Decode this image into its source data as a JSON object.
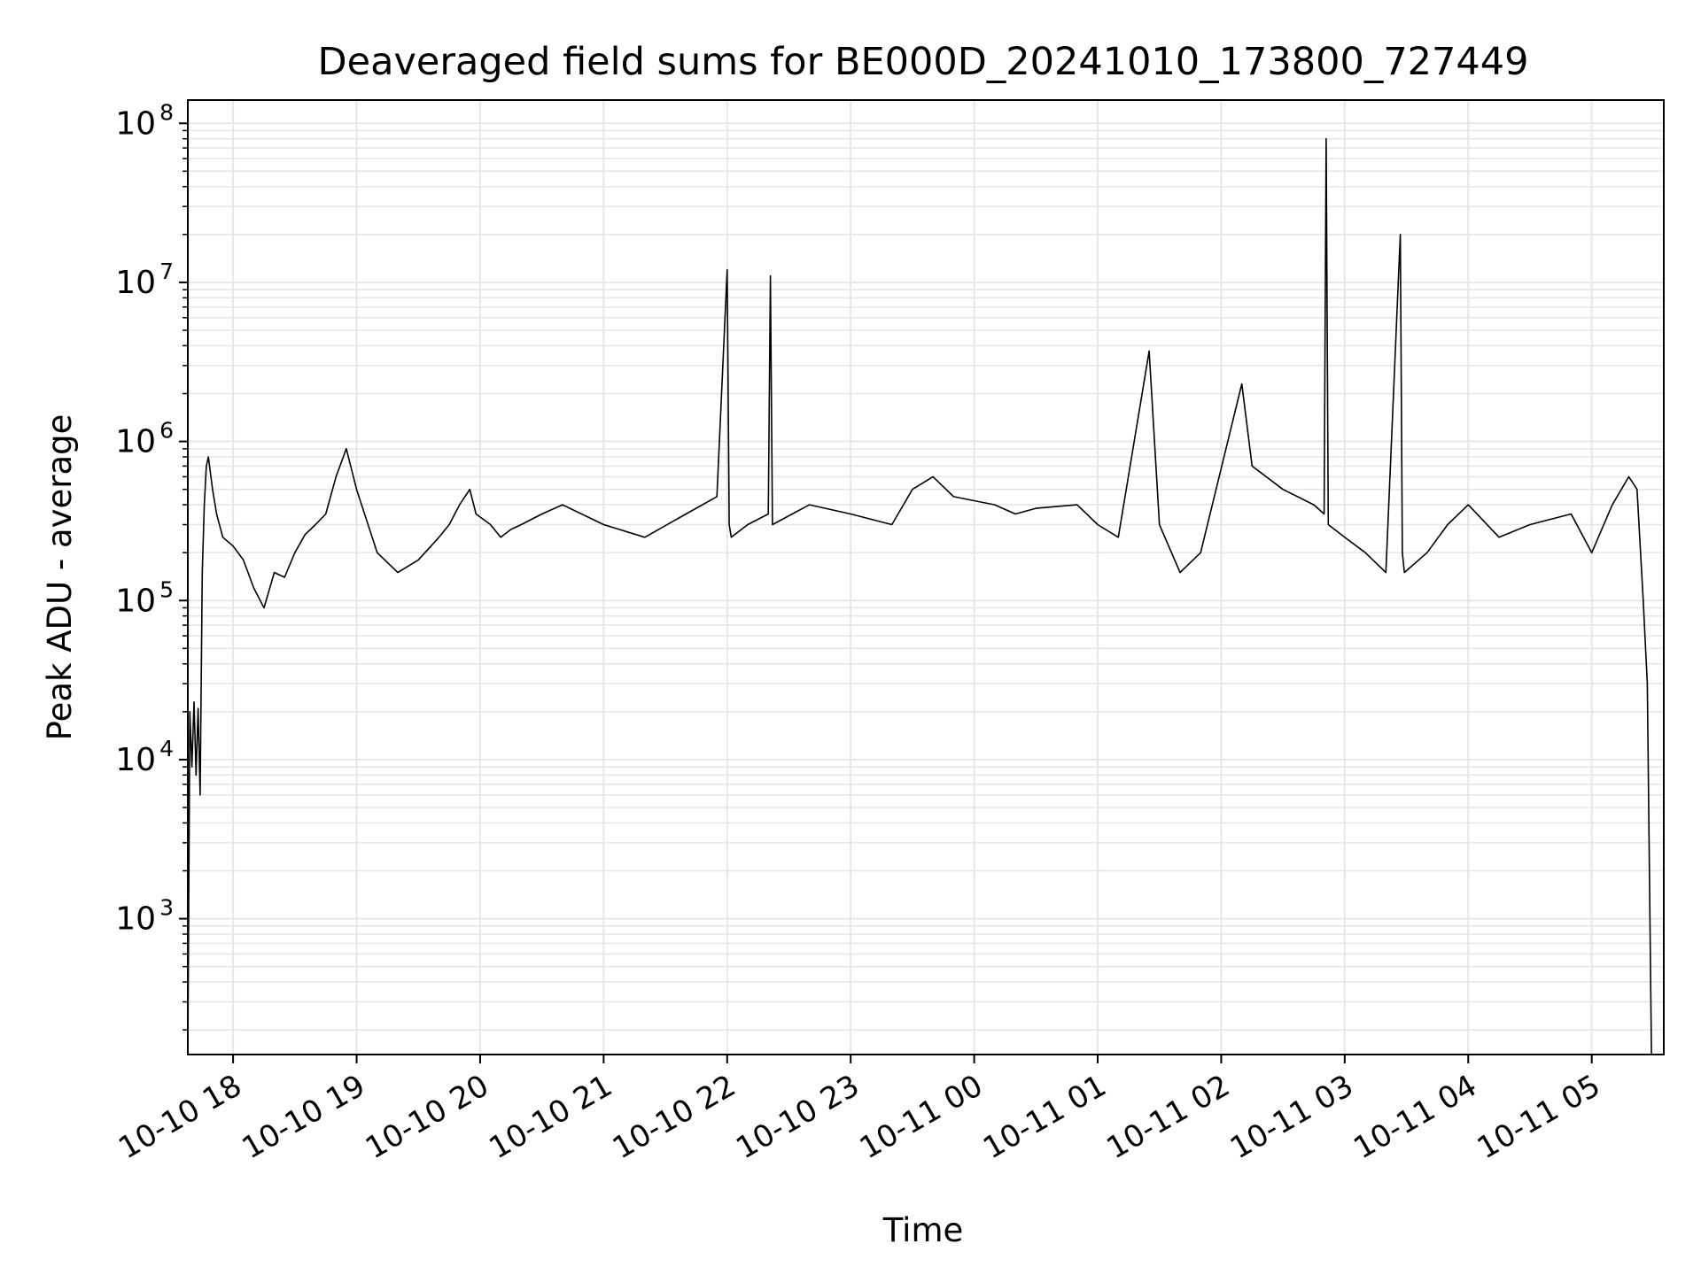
{
  "chart_data": {
    "type": "line",
    "title": "Deaveraged field sums for BE000D_20241010_173800_727449",
    "xlabel": "Time",
    "ylabel": "Peak ADU - average",
    "x_axis": "time",
    "xlim": [
      "2024-10-10 17:38",
      "2024-10-11 05:35"
    ],
    "xticks": [
      {
        "label": "10-10 18",
        "time": "2024-10-10 18:00"
      },
      {
        "label": "10-10 19",
        "time": "2024-10-10 19:00"
      },
      {
        "label": "10-10 20",
        "time": "2024-10-10 20:00"
      },
      {
        "label": "10-10 21",
        "time": "2024-10-10 21:00"
      },
      {
        "label": "10-10 22",
        "time": "2024-10-10 22:00"
      },
      {
        "label": "10-10 23",
        "time": "2024-10-10 23:00"
      },
      {
        "label": "10-11 00",
        "time": "2024-10-11 00:00"
      },
      {
        "label": "10-11 01",
        "time": "2024-10-11 01:00"
      },
      {
        "label": "10-11 02",
        "time": "2024-10-11 02:00"
      },
      {
        "label": "10-11 03",
        "time": "2024-10-11 03:00"
      },
      {
        "label": "10-11 04",
        "time": "2024-10-11 04:00"
      },
      {
        "label": "10-11 05",
        "time": "2024-10-11 05:00"
      }
    ],
    "y_scale": "log",
    "ylim": [
      140,
      140000000
    ],
    "yticks": [
      {
        "base": "10",
        "exp": "3",
        "value": 1000
      },
      {
        "base": "10",
        "exp": "4",
        "value": 10000
      },
      {
        "base": "10",
        "exp": "5",
        "value": 100000
      },
      {
        "base": "10",
        "exp": "6",
        "value": 1000000
      },
      {
        "base": "10",
        "exp": "7",
        "value": 10000000
      },
      {
        "base": "10",
        "exp": "8",
        "value": 100000000
      }
    ],
    "grid": true,
    "line_color": "#000000",
    "grid_color": "#e6e6e6",
    "series": [
      {
        "x": [
          "2024-10-10 17:38",
          "2024-10-10 17:39",
          "2024-10-10 17:40",
          "2024-10-10 17:41",
          "2024-10-10 17:42",
          "2024-10-10 17:43",
          "2024-10-10 17:44",
          "2024-10-10 17:45",
          "2024-10-10 17:46",
          "2024-10-10 17:47",
          "2024-10-10 17:48",
          "2024-10-10 17:50",
          "2024-10-10 17:52",
          "2024-10-10 17:55",
          "2024-10-10 18:00",
          "2024-10-10 18:05",
          "2024-10-10 18:10",
          "2024-10-10 18:15",
          "2024-10-10 18:20",
          "2024-10-10 18:25",
          "2024-10-10 18:30",
          "2024-10-10 18:35",
          "2024-10-10 18:40",
          "2024-10-10 18:45",
          "2024-10-10 18:50",
          "2024-10-10 18:55",
          "2024-10-10 19:00",
          "2024-10-10 19:10",
          "2024-10-10 19:20",
          "2024-10-10 19:30",
          "2024-10-10 19:40",
          "2024-10-10 19:45",
          "2024-10-10 19:50",
          "2024-10-10 19:55",
          "2024-10-10 19:58",
          "2024-10-10 20:05",
          "2024-10-10 20:10",
          "2024-10-10 20:15",
          "2024-10-10 20:20",
          "2024-10-10 20:30",
          "2024-10-10 20:40",
          "2024-10-10 21:00",
          "2024-10-10 21:20",
          "2024-10-10 21:40",
          "2024-10-10 21:55",
          "2024-10-10 22:00",
          "2024-10-10 22:01",
          "2024-10-10 22:02",
          "2024-10-10 22:10",
          "2024-10-10 22:20",
          "2024-10-10 22:21",
          "2024-10-10 22:22",
          "2024-10-10 22:40",
          "2024-10-10 23:00",
          "2024-10-10 23:20",
          "2024-10-10 23:30",
          "2024-10-10 23:40",
          "2024-10-10 23:50",
          "2024-10-11 00:10",
          "2024-10-11 00:20",
          "2024-10-11 00:30",
          "2024-10-11 00:50",
          "2024-10-11 01:00",
          "2024-10-11 01:10",
          "2024-10-11 01:25",
          "2024-10-11 01:30",
          "2024-10-11 01:40",
          "2024-10-11 01:50",
          "2024-10-11 02:10",
          "2024-10-11 02:15",
          "2024-10-11 02:30",
          "2024-10-11 02:45",
          "2024-10-11 02:50",
          "2024-10-11 02:51",
          "2024-10-11 02:52",
          "2024-10-11 03:00",
          "2024-10-11 03:10",
          "2024-10-11 03:20",
          "2024-10-11 03:27",
          "2024-10-11 03:28",
          "2024-10-11 03:29",
          "2024-10-11 03:40",
          "2024-10-11 03:50",
          "2024-10-11 04:00",
          "2024-10-11 04:15",
          "2024-10-11 04:30",
          "2024-10-11 04:50",
          "2024-10-11 05:00",
          "2024-10-11 05:10",
          "2024-10-11 05:18",
          "2024-10-11 05:22",
          "2024-10-11 05:25",
          "2024-10-11 05:27",
          "2024-10-11 05:29"
        ],
        "y": [
          140,
          20000,
          9000,
          23000,
          8000,
          21000,
          6000,
          150000,
          400000,
          700000,
          800000,
          500000,
          350000,
          250000,
          220000,
          180000,
          120000,
          90000,
          150000,
          140000,
          200000,
          260000,
          300000,
          350000,
          600000,
          900000,
          500000,
          200000,
          150000,
          180000,
          250000,
          300000,
          400000,
          500000,
          350000,
          300000,
          250000,
          280000,
          300000,
          350000,
          400000,
          300000,
          250000,
          350000,
          450000,
          12000000,
          300000,
          250000,
          300000,
          350000,
          11000000,
          300000,
          400000,
          350000,
          300000,
          500000,
          600000,
          450000,
          400000,
          350000,
          380000,
          400000,
          300000,
          250000,
          3700000,
          300000,
          150000,
          200000,
          2300000,
          700000,
          500000,
          400000,
          350000,
          80000000,
          300000,
          250000,
          200000,
          150000,
          20000000,
          200000,
          150000,
          200000,
          300000,
          400000,
          250000,
          300000,
          350000,
          200000,
          400000,
          600000,
          500000,
          100000,
          30000,
          140
        ]
      }
    ]
  }
}
